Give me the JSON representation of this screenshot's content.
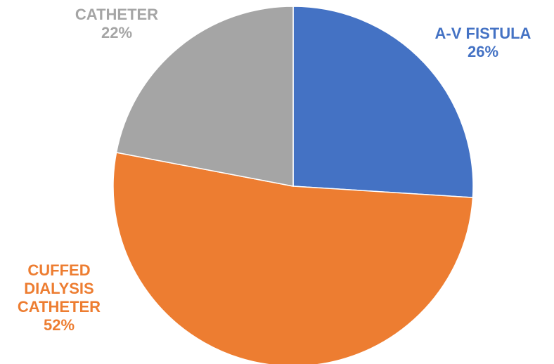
{
  "chart_data": {
    "type": "pie",
    "title": "",
    "slices": [
      {
        "label": [
          "A-V FISTULA"
        ],
        "value": 26,
        "value_label": "26%",
        "color": "#4472C4"
      },
      {
        "label": [
          "CUFFED",
          "DIALYSIS",
          "CATHETER"
        ],
        "value": 52,
        "value_label": "52%",
        "color": "#ED7D31"
      },
      {
        "label": [
          "CATHETER"
        ],
        "value": 22,
        "value_label": "22%",
        "color": "#A5A5A5"
      }
    ]
  }
}
